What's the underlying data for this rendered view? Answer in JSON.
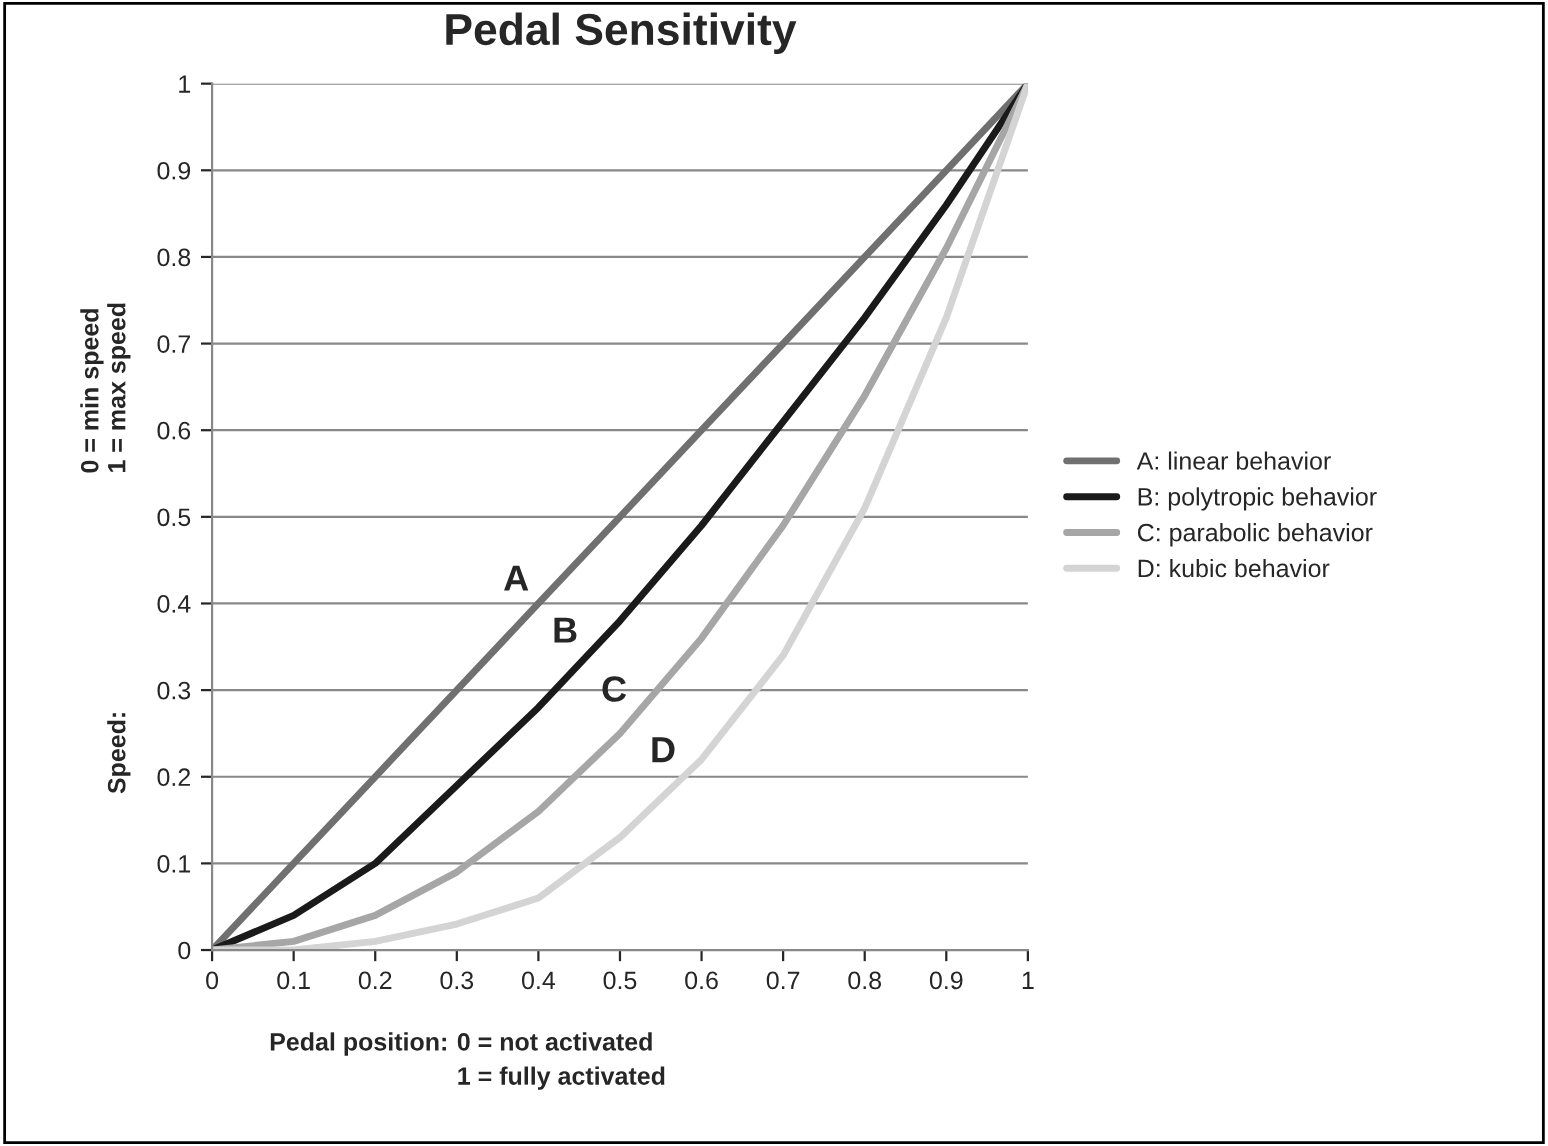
{
  "chart_data": {
    "type": "line",
    "title": "Pedal Sensitivity",
    "xlabel": "Pedal position:",
    "ylabel": "Speed:",
    "x": [
      0,
      0.1,
      0.2,
      0.3,
      0.4,
      0.5,
      0.6,
      0.7,
      0.8,
      0.9,
      1
    ],
    "series": [
      {
        "name": "A: linear behavior",
        "color": "#707070",
        "values": [
          0,
          0.1,
          0.2,
          0.3,
          0.4,
          0.5,
          0.6,
          0.7,
          0.8,
          0.9,
          1
        ]
      },
      {
        "name": "B: polytropic behavior",
        "color": "#1a1a1a",
        "values": [
          0,
          0.04,
          0.1,
          0.19,
          0.28,
          0.38,
          0.49,
          0.61,
          0.73,
          0.86,
          1
        ]
      },
      {
        "name": "C: parabolic behavior",
        "color": "#a6a6a6",
        "values": [
          0,
          0.01,
          0.04,
          0.09,
          0.16,
          0.25,
          0.36,
          0.49,
          0.64,
          0.81,
          1
        ]
      },
      {
        "name": "D: kubic behavior",
        "color": "#d4d4d4",
        "values": [
          0,
          0,
          0.01,
          0.03,
          0.06,
          0.13,
          0.22,
          0.34,
          0.51,
          0.73,
          1
        ]
      }
    ],
    "annotations": [
      "0 = min speed\n1 = max speed",
      "0 = not activated\n1 = fully activated",
      "A",
      "B",
      "C",
      "D"
    ],
    "xlim": [
      0,
      1
    ],
    "ylim": [
      0,
      1
    ],
    "xticks": [
      0,
      0.1,
      0.2,
      0.3,
      0.4,
      0.5,
      0.6,
      0.7,
      0.8,
      0.9,
      1
    ],
    "yticks": [
      0,
      0.1,
      0.2,
      0.3,
      0.4,
      0.5,
      0.6,
      0.7,
      0.8,
      0.9,
      1
    ],
    "grid": "y",
    "legend": "right",
    "marker": "none",
    "line_style": "solid"
  }
}
